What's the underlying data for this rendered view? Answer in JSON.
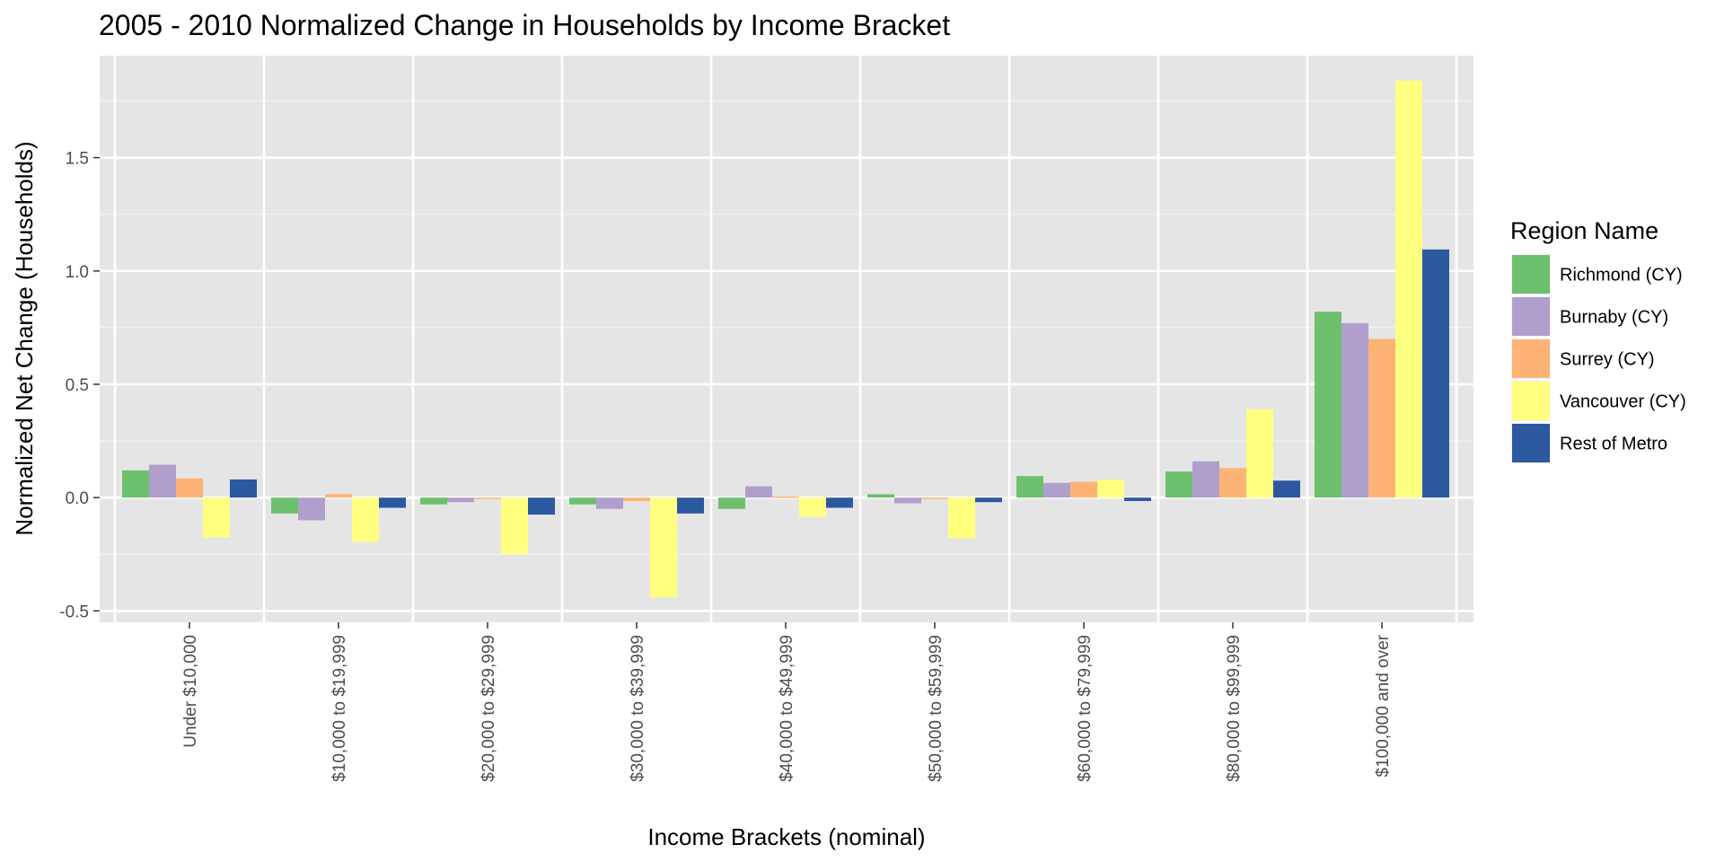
{
  "chart_data": {
    "type": "bar",
    "title": "2005 - 2010 Normalized Change in Households by Income Bracket",
    "xlabel": "Income Brackets (nominal)",
    "ylabel": "Normalized Net Change (Households)",
    "ylim": [
      -0.55,
      1.95
    ],
    "yticks": [
      -0.5,
      0.0,
      0.5,
      1.0,
      1.5
    ],
    "ytick_labels": [
      "-0.5",
      "0.0",
      "0.5",
      "1.0",
      "1.5"
    ],
    "grid": true,
    "legend_title": "Region Name",
    "legend_position": "right",
    "categories": [
      "Under $10,000",
      "$10,000 to $19,999",
      "$20,000 to $29,999",
      "$30,000 to $39,999",
      "$40,000 to $49,999",
      "$50,000 to $59,999",
      "$60,000 to $79,999",
      "$80,000 to $99,999",
      "$100,000 and over"
    ],
    "series": [
      {
        "name": "Richmond (CY)",
        "color": "#6dc06d",
        "values": [
          0.12,
          -0.07,
          -0.03,
          -0.03,
          -0.05,
          0.015,
          0.095,
          0.115,
          0.82
        ]
      },
      {
        "name": "Burnaby (CY)",
        "color": "#b09fcd",
        "values": [
          0.145,
          -0.1,
          -0.02,
          -0.05,
          0.05,
          -0.025,
          0.065,
          0.16,
          0.77
        ]
      },
      {
        "name": "Surrey (CY)",
        "color": "#fcb375",
        "values": [
          0.085,
          0.015,
          0.0,
          -0.015,
          0.005,
          0.0,
          0.07,
          0.13,
          0.7
        ]
      },
      {
        "name": "Vancouver (CY)",
        "color": "#ffff80",
        "values": [
          -0.175,
          -0.195,
          -0.25,
          -0.44,
          -0.085,
          -0.18,
          0.08,
          0.39,
          1.84
        ]
      },
      {
        "name": "Rest of Metro",
        "color": "#2c58a0",
        "values": [
          0.08,
          -0.045,
          -0.075,
          -0.07,
          -0.045,
          -0.02,
          -0.015,
          0.075,
          1.095
        ]
      }
    ]
  }
}
